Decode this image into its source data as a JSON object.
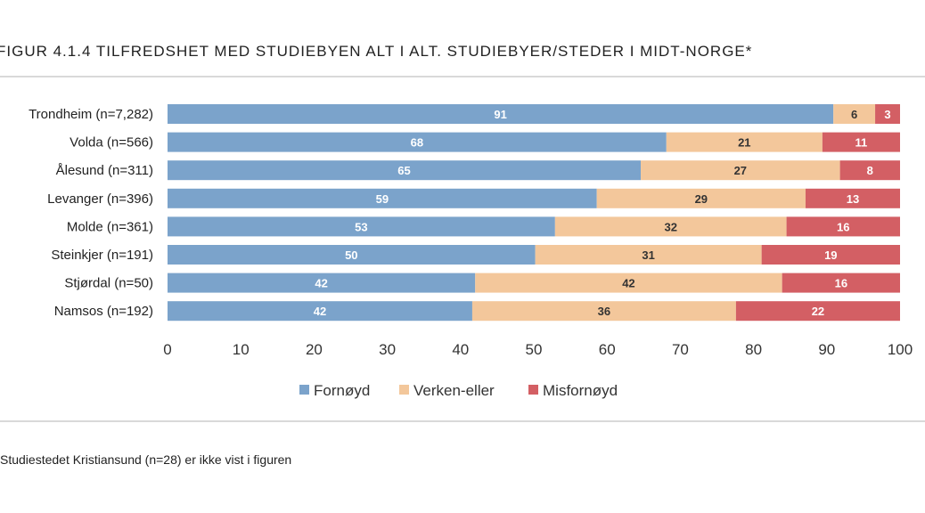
{
  "chart_data": {
    "type": "bar",
    "orientation": "horizontal",
    "stacked": true,
    "title": "FIGUR 4.1.4 TILFREDSHET MED STUDIEBYEN ALT I ALT. STUDIEBYER/STEDER I MIDT-NORGE*",
    "categories": [
      "Trondheim (n=7,282)",
      "Volda (n=566)",
      "Ålesund (n=311)",
      "Levanger (n=396)",
      "Molde (n=361)",
      "Steinkjer (n=191)",
      "Stjørdal (n=50)",
      "Namsos (n=192)"
    ],
    "series": [
      {
        "name": "Fornøyd",
        "color": "#7BA3CB",
        "text_color": "#ffffff",
        "values": [
          90.9,
          68.1,
          64.6,
          58.6,
          52.9,
          50.2,
          42.0,
          41.6
        ],
        "labels": [
          "91",
          "68",
          "65",
          "59",
          "53",
          "50",
          "42",
          "42"
        ]
      },
      {
        "name": "Verken-eller",
        "color": "#F3C79B",
        "text_color": "#333333",
        "values": [
          5.7,
          21.3,
          27.2,
          28.5,
          31.6,
          30.9,
          41.9,
          36.0
        ],
        "labels": [
          "6",
          "21",
          "27",
          "29",
          "32",
          "31",
          "42",
          "36"
        ]
      },
      {
        "name": "Misfornøyd",
        "color": "#D35F64",
        "text_color": "#ffffff",
        "values": [
          3.4,
          10.6,
          8.2,
          12.9,
          15.5,
          18.9,
          16.1,
          22.4
        ],
        "labels": [
          "3",
          "11",
          "8",
          "13",
          "16",
          "19",
          "16",
          "22"
        ]
      }
    ],
    "xlim": [
      0,
      100
    ],
    "xticks": [
      "0",
      "10",
      "20",
      "30",
      "40",
      "50",
      "60",
      "70",
      "80",
      "90",
      "100"
    ],
    "grid": false,
    "legend_position": "bottom"
  },
  "footnote": "Studiestedet Kristiansund (n=28) er ikke vist i figuren"
}
